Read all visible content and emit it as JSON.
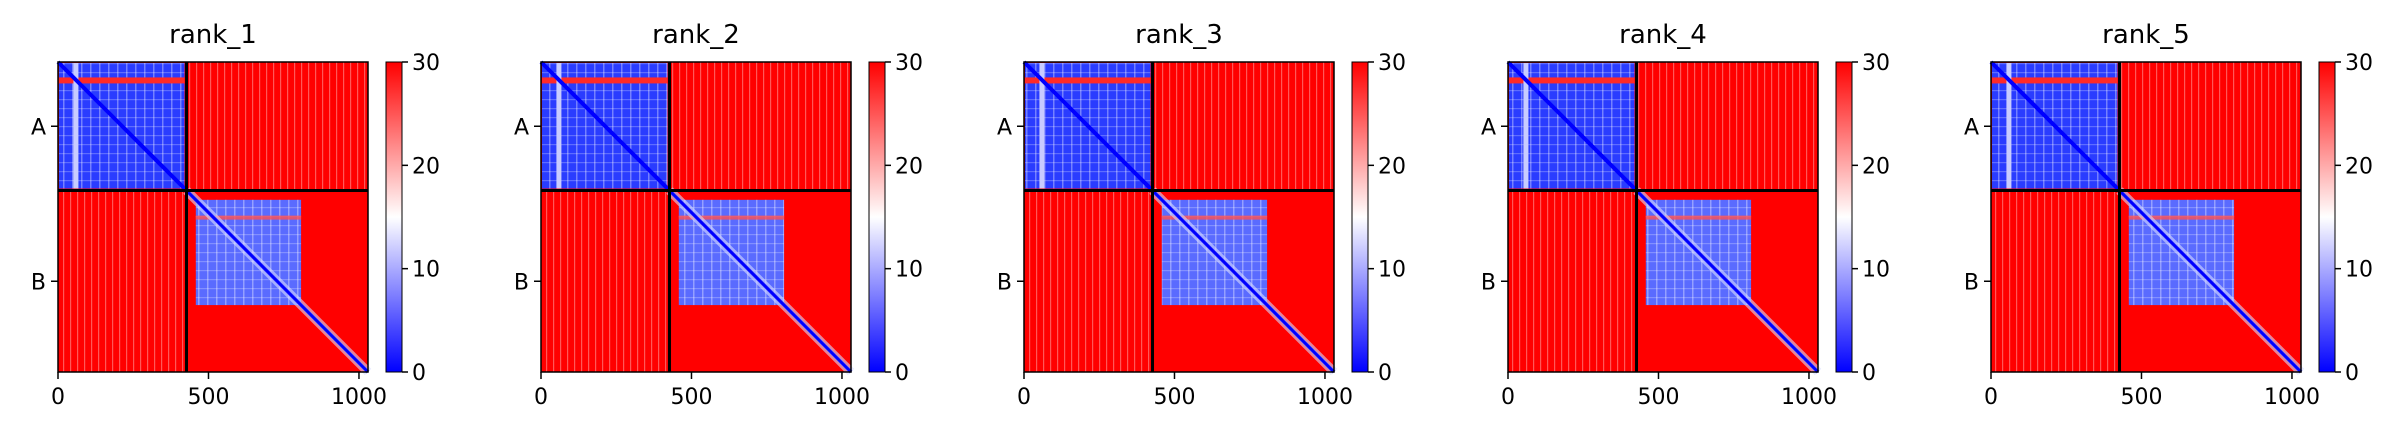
{
  "chart_data": [
    {
      "type": "heatmap",
      "title": "rank_1",
      "xlim": [
        0,
        1030
      ],
      "x_ticks": [
        "0",
        "500",
        "1000"
      ],
      "x_tick_values": [
        0,
        500,
        1000
      ],
      "y_tick_labels": [
        "A",
        "B"
      ],
      "chain_boundary": 427,
      "colorbar": {
        "min": 0,
        "max": 30,
        "ticks": [
          "0",
          "10",
          "20",
          "30"
        ],
        "tick_values": [
          0,
          10,
          20,
          30
        ]
      },
      "colormap": [
        "#0000ff",
        "#ffffff",
        "#ff0000"
      ]
    },
    {
      "type": "heatmap",
      "title": "rank_2",
      "xlim": [
        0,
        1030
      ],
      "x_ticks": [
        "0",
        "500",
        "1000"
      ],
      "x_tick_values": [
        0,
        500,
        1000
      ],
      "y_tick_labels": [
        "A",
        "B"
      ],
      "chain_boundary": 427,
      "colorbar": {
        "min": 0,
        "max": 30,
        "ticks": [
          "0",
          "10",
          "20",
          "30"
        ],
        "tick_values": [
          0,
          10,
          20,
          30
        ]
      },
      "colormap": [
        "#0000ff",
        "#ffffff",
        "#ff0000"
      ]
    },
    {
      "type": "heatmap",
      "title": "rank_3",
      "xlim": [
        0,
        1030
      ],
      "x_ticks": [
        "0",
        "500",
        "1000"
      ],
      "x_tick_values": [
        0,
        500,
        1000
      ],
      "y_tick_labels": [
        "A",
        "B"
      ],
      "chain_boundary": 427,
      "colorbar": {
        "min": 0,
        "max": 30,
        "ticks": [
          "0",
          "10",
          "20",
          "30"
        ],
        "tick_values": [
          0,
          10,
          20,
          30
        ]
      },
      "colormap": [
        "#0000ff",
        "#ffffff",
        "#ff0000"
      ]
    },
    {
      "type": "heatmap",
      "title": "rank_4",
      "xlim": [
        0,
        1030
      ],
      "x_ticks": [
        "0",
        "500",
        "1000"
      ],
      "x_tick_values": [
        0,
        500,
        1000
      ],
      "y_tick_labels": [
        "A",
        "B"
      ],
      "chain_boundary": 427,
      "colorbar": {
        "min": 0,
        "max": 30,
        "ticks": [
          "0",
          "10",
          "20",
          "30"
        ],
        "tick_values": [
          0,
          10,
          20,
          30
        ]
      },
      "colormap": [
        "#0000ff",
        "#ffffff",
        "#ff0000"
      ]
    },
    {
      "type": "heatmap",
      "title": "rank_5",
      "xlim": [
        0,
        1030
      ],
      "x_ticks": [
        "0",
        "500",
        "1000"
      ],
      "x_tick_values": [
        0,
        500,
        1000
      ],
      "y_tick_labels": [
        "A",
        "B"
      ],
      "chain_boundary": 427,
      "colorbar": {
        "min": 0,
        "max": 30,
        "ticks": [
          "0",
          "10",
          "20",
          "30"
        ],
        "tick_values": [
          0,
          10,
          20,
          30
        ]
      },
      "colormap": [
        "#0000ff",
        "#ffffff",
        "#ff0000"
      ]
    }
  ]
}
